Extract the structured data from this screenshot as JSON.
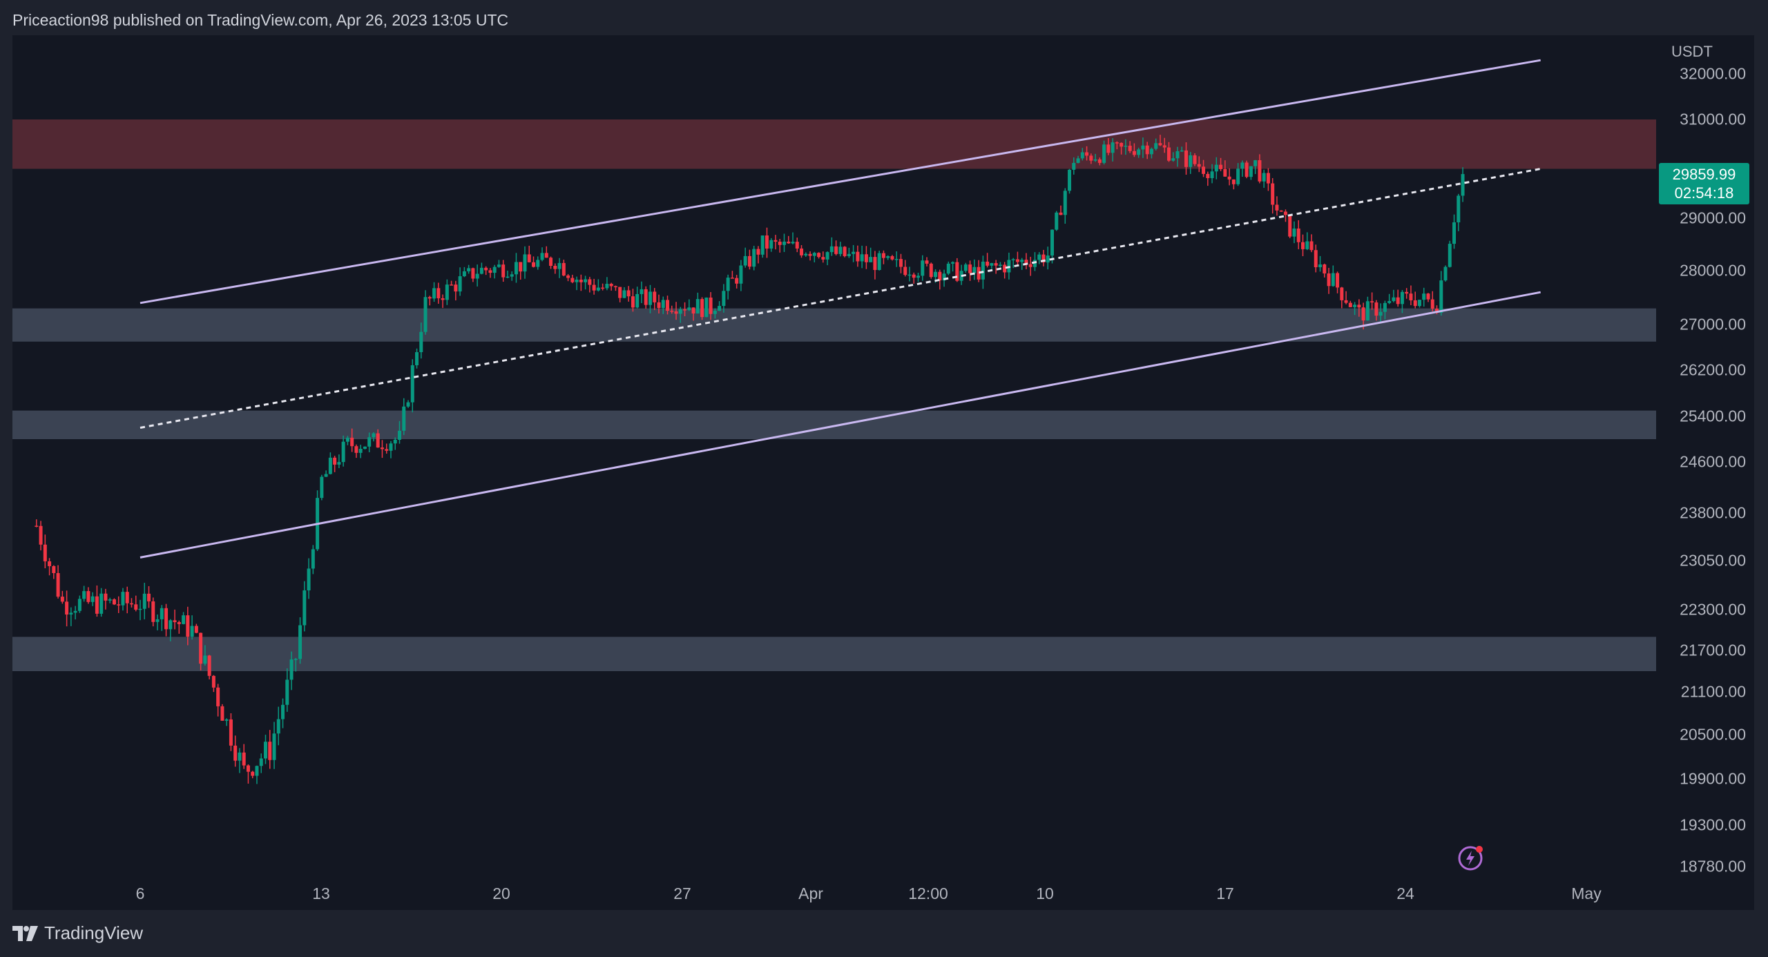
{
  "header": {
    "publisher_line": "Priceaction98 published on TradingView.com, Apr 26, 2023 13:05 UTC"
  },
  "price_axis": {
    "currency": "USDT",
    "labels": [
      "32000.00",
      "31000.00",
      "29000.00",
      "28000.00",
      "27000.00",
      "26200.00",
      "25400.00",
      "24600.00",
      "23800.00",
      "23050.00",
      "22300.00",
      "21700.00",
      "21100.00",
      "20500.00",
      "19900.00",
      "19300.00",
      "18780.00"
    ]
  },
  "time_axis": {
    "labels": [
      "6",
      "13",
      "20",
      "27",
      "Apr",
      "12:00",
      "10",
      "17",
      "24",
      "May"
    ]
  },
  "last_price": {
    "price": "29859.99",
    "countdown": "02:54:18",
    "color": "#089981"
  },
  "footer": {
    "logo_text": "TradingView"
  },
  "icons": {
    "logo": "tradingview-logo-icon",
    "flash": "lightning-flash-icon"
  },
  "colors": {
    "background": "#131722",
    "up_candle": "#089981",
    "down_candle": "#f23645",
    "channel_line": "#c9b8f0",
    "resistance_zone": "#5a2a35",
    "support_zone": "#434b5c"
  },
  "chart_data": {
    "type": "candlestick",
    "title": "",
    "ylabel": "USDT",
    "ylim": [
      18780,
      32200
    ],
    "x_ticks": [
      "6",
      "13",
      "20",
      "27",
      "Apr",
      "12:00",
      "10",
      "17",
      "24",
      "May"
    ],
    "zones": [
      {
        "kind": "resistance",
        "from": 30000,
        "to": 31000
      },
      {
        "kind": "support",
        "from": 26700,
        "to": 27300
      },
      {
        "kind": "support",
        "from": 25000,
        "to": 25500
      },
      {
        "kind": "support",
        "from": 21400,
        "to": 21900
      }
    ],
    "channel": {
      "upper": [
        {
          "date": "Mar 6",
          "price": 27400
        },
        {
          "date": "Apr 29",
          "price": 32300
        }
      ],
      "middle": [
        {
          "date": "Mar 6",
          "price": 25200
        },
        {
          "date": "Apr 29",
          "price": 30000
        }
      ],
      "lower": [
        {
          "date": "Mar 6",
          "price": 23100
        },
        {
          "date": "Apr 29",
          "price": 27600
        }
      ]
    },
    "price_path": [
      {
        "date": "Mar 2",
        "price": 23600
      },
      {
        "date": "Mar 3",
        "price": 22400
      },
      {
        "date": "Mar 6",
        "price": 22400
      },
      {
        "date": "Mar 8",
        "price": 22000
      },
      {
        "date": "Mar 10",
        "price": 20000
      },
      {
        "date": "Mar 11",
        "price": 20300
      },
      {
        "date": "Mar 12",
        "price": 21600
      },
      {
        "date": "Mar 13",
        "price": 24300
      },
      {
        "date": "Mar 14",
        "price": 24900
      },
      {
        "date": "Mar 16",
        "price": 25000
      },
      {
        "date": "Mar 17",
        "price": 27400
      },
      {
        "date": "Mar 19",
        "price": 28000
      },
      {
        "date": "Mar 22",
        "price": 28200
      },
      {
        "date": "Mar 23",
        "price": 27800
      },
      {
        "date": "Mar 25",
        "price": 27500
      },
      {
        "date": "Mar 28",
        "price": 27300
      },
      {
        "date": "Mar 30",
        "price": 28500
      },
      {
        "date": "Apr 1",
        "price": 28400
      },
      {
        "date": "Apr 4",
        "price": 28100
      },
      {
        "date": "Apr 7",
        "price": 27950
      },
      {
        "date": "Apr 10",
        "price": 28300
      },
      {
        "date": "Apr 11",
        "price": 30200
      },
      {
        "date": "Apr 13",
        "price": 30400
      },
      {
        "date": "Apr 14",
        "price": 30500
      },
      {
        "date": "Apr 17",
        "price": 29800
      },
      {
        "date": "Apr 18",
        "price": 30100
      },
      {
        "date": "Apr 19",
        "price": 29000
      },
      {
        "date": "Apr 21",
        "price": 27800
      },
      {
        "date": "Apr 22",
        "price": 27200
      },
      {
        "date": "Apr 24",
        "price": 27500
      },
      {
        "date": "Apr 25",
        "price": 27400
      },
      {
        "date": "Apr 26",
        "price": 29860
      }
    ],
    "last_price": 29859.99
  }
}
